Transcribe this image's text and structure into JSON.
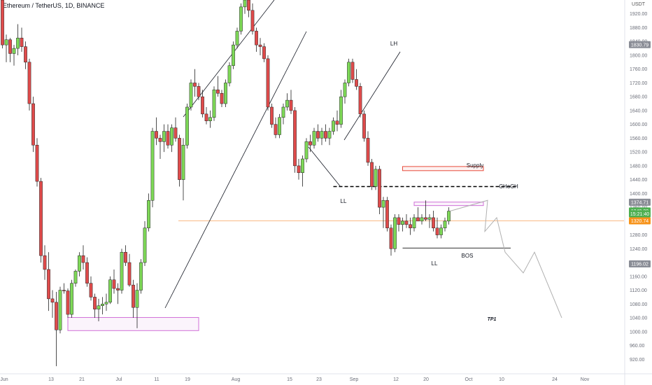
{
  "header": {
    "symbol_title": "Ethereum / TetherUS, 1D, BINANCE",
    "currency": "USDT"
  },
  "chart_data": {
    "type": "candlestick",
    "title": "Ethereum / TetherUS, 1D, BINANCE",
    "y_axis": {
      "min": 880,
      "max": 1960,
      "ticks": [
        920,
        960,
        1000,
        1040,
        1080,
        1120,
        1160,
        1200,
        1240,
        1280,
        1320,
        1360,
        1400,
        1440,
        1480,
        1520,
        1560,
        1600,
        1640,
        1680,
        1720,
        1760,
        1800,
        1840,
        1880,
        1920
      ],
      "side": "right"
    },
    "x_axis": {
      "labels": [
        "Jun",
        "13",
        "21",
        "Jul",
        "11",
        "19",
        "Aug",
        "15",
        "23",
        "Sep",
        "12",
        "20",
        "Oct",
        "10",
        "24",
        "Nov"
      ]
    },
    "grid": false,
    "price_badges": [
      {
        "value": "1830.79",
        "price": 1830.79,
        "style": "gray"
      },
      {
        "value": "1374.71",
        "price": 1374.71,
        "style": "gray"
      },
      {
        "value": "1349.29",
        "price": 1349.29,
        "style": "green"
      },
      {
        "value": "15:21:40",
        "price": 1341,
        "style": "green"
      },
      {
        "value": "1320.74",
        "price": 1320.74,
        "style": "orange"
      },
      {
        "value": "1196.02",
        "price": 1196.02,
        "style": "gray"
      }
    ],
    "candles": [
      {
        "o": 1960,
        "h": 1970,
        "l": 1820,
        "c": 1830
      },
      {
        "o": 1830,
        "h": 1860,
        "l": 1780,
        "c": 1845
      },
      {
        "o": 1845,
        "h": 1850,
        "l": 1780,
        "c": 1805
      },
      {
        "o": 1805,
        "h": 1830,
        "l": 1770,
        "c": 1820
      },
      {
        "o": 1820,
        "h": 1890,
        "l": 1800,
        "c": 1850
      },
      {
        "o": 1850,
        "h": 1880,
        "l": 1810,
        "c": 1825
      },
      {
        "o": 1825,
        "h": 1840,
        "l": 1760,
        "c": 1780
      },
      {
        "o": 1780,
        "h": 1790,
        "l": 1640,
        "c": 1660
      },
      {
        "o": 1660,
        "h": 1680,
        "l": 1520,
        "c": 1540
      },
      {
        "o": 1540,
        "h": 1560,
        "l": 1420,
        "c": 1435
      },
      {
        "o": 1435,
        "h": 1445,
        "l": 1200,
        "c": 1220
      },
      {
        "o": 1220,
        "h": 1250,
        "l": 1150,
        "c": 1180
      },
      {
        "o": 1180,
        "h": 1230,
        "l": 1060,
        "c": 1095
      },
      {
        "o": 1095,
        "h": 1120,
        "l": 1040,
        "c": 1085
      },
      {
        "o": 1085,
        "h": 1115,
        "l": 900,
        "c": 1005
      },
      {
        "o": 1005,
        "h": 1130,
        "l": 995,
        "c": 1120
      },
      {
        "o": 1120,
        "h": 1140,
        "l": 1110,
        "c": 1118
      },
      {
        "o": 1118,
        "h": 1125,
        "l": 1040,
        "c": 1050
      },
      {
        "o": 1050,
        "h": 1150,
        "l": 1040,
        "c": 1140
      },
      {
        "o": 1140,
        "h": 1180,
        "l": 1130,
        "c": 1175
      },
      {
        "o": 1175,
        "h": 1230,
        "l": 1160,
        "c": 1220
      },
      {
        "o": 1220,
        "h": 1250,
        "l": 1180,
        "c": 1200
      },
      {
        "o": 1200,
        "h": 1215,
        "l": 1130,
        "c": 1140
      },
      {
        "o": 1140,
        "h": 1160,
        "l": 1090,
        "c": 1100
      },
      {
        "o": 1100,
        "h": 1110,
        "l": 1040,
        "c": 1065
      },
      {
        "o": 1065,
        "h": 1095,
        "l": 1030,
        "c": 1075
      },
      {
        "o": 1075,
        "h": 1100,
        "l": 1050,
        "c": 1080
      },
      {
        "o": 1080,
        "h": 1110,
        "l": 1060,
        "c": 1085
      },
      {
        "o": 1085,
        "h": 1160,
        "l": 1080,
        "c": 1150
      },
      {
        "o": 1150,
        "h": 1180,
        "l": 1110,
        "c": 1125
      },
      {
        "o": 1125,
        "h": 1140,
        "l": 1080,
        "c": 1120
      },
      {
        "o": 1120,
        "h": 1240,
        "l": 1110,
        "c": 1230
      },
      {
        "o": 1230,
        "h": 1250,
        "l": 1190,
        "c": 1200
      },
      {
        "o": 1200,
        "h": 1225,
        "l": 1130,
        "c": 1135
      },
      {
        "o": 1135,
        "h": 1150,
        "l": 1040,
        "c": 1070
      },
      {
        "o": 1070,
        "h": 1140,
        "l": 1010,
        "c": 1120
      },
      {
        "o": 1120,
        "h": 1210,
        "l": 1110,
        "c": 1200
      },
      {
        "o": 1200,
        "h": 1320,
        "l": 1190,
        "c": 1300
      },
      {
        "o": 1300,
        "h": 1400,
        "l": 1290,
        "c": 1380
      },
      {
        "o": 1380,
        "h": 1590,
        "l": 1360,
        "c": 1580
      },
      {
        "o": 1580,
        "h": 1620,
        "l": 1540,
        "c": 1560
      },
      {
        "o": 1560,
        "h": 1570,
        "l": 1500,
        "c": 1550
      },
      {
        "o": 1550,
        "h": 1600,
        "l": 1520,
        "c": 1580
      },
      {
        "o": 1580,
        "h": 1600,
        "l": 1530,
        "c": 1540
      },
      {
        "o": 1540,
        "h": 1600,
        "l": 1520,
        "c": 1590
      },
      {
        "o": 1590,
        "h": 1620,
        "l": 1550,
        "c": 1560
      },
      {
        "o": 1560,
        "h": 1570,
        "l": 1420,
        "c": 1440
      },
      {
        "o": 1440,
        "h": 1560,
        "l": 1380,
        "c": 1540
      },
      {
        "o": 1540,
        "h": 1660,
        "l": 1530,
        "c": 1650
      },
      {
        "o": 1650,
        "h": 1730,
        "l": 1640,
        "c": 1720
      },
      {
        "o": 1720,
        "h": 1760,
        "l": 1680,
        "c": 1710
      },
      {
        "o": 1710,
        "h": 1720,
        "l": 1670,
        "c": 1680
      },
      {
        "o": 1680,
        "h": 1700,
        "l": 1620,
        "c": 1630
      },
      {
        "o": 1630,
        "h": 1650,
        "l": 1600,
        "c": 1610
      },
      {
        "o": 1610,
        "h": 1640,
        "l": 1590,
        "c": 1620
      },
      {
        "o": 1620,
        "h": 1710,
        "l": 1610,
        "c": 1700
      },
      {
        "o": 1700,
        "h": 1740,
        "l": 1680,
        "c": 1690
      },
      {
        "o": 1690,
        "h": 1700,
        "l": 1650,
        "c": 1660
      },
      {
        "o": 1660,
        "h": 1730,
        "l": 1650,
        "c": 1720
      },
      {
        "o": 1720,
        "h": 1780,
        "l": 1710,
        "c": 1770
      },
      {
        "o": 1770,
        "h": 1840,
        "l": 1760,
        "c": 1830
      },
      {
        "o": 1830,
        "h": 1880,
        "l": 1820,
        "c": 1870
      },
      {
        "o": 1870,
        "h": 1950,
        "l": 1860,
        "c": 1940
      },
      {
        "o": 1940,
        "h": 1980,
        "l": 1920,
        "c": 1960
      },
      {
        "o": 1960,
        "h": 1975,
        "l": 1910,
        "c": 1930
      },
      {
        "o": 1930,
        "h": 1950,
        "l": 1860,
        "c": 1870
      },
      {
        "o": 1870,
        "h": 1880,
        "l": 1810,
        "c": 1830
      },
      {
        "o": 1830,
        "h": 1850,
        "l": 1800,
        "c": 1825
      },
      {
        "o": 1825,
        "h": 1835,
        "l": 1780,
        "c": 1790
      },
      {
        "o": 1790,
        "h": 1800,
        "l": 1640,
        "c": 1650
      },
      {
        "o": 1650,
        "h": 1660,
        "l": 1590,
        "c": 1600
      },
      {
        "o": 1600,
        "h": 1620,
        "l": 1560,
        "c": 1570
      },
      {
        "o": 1570,
        "h": 1630,
        "l": 1560,
        "c": 1620
      },
      {
        "o": 1620,
        "h": 1660,
        "l": 1600,
        "c": 1650
      },
      {
        "o": 1650,
        "h": 1690,
        "l": 1640,
        "c": 1670
      },
      {
        "o": 1670,
        "h": 1700,
        "l": 1630,
        "c": 1640
      },
      {
        "o": 1640,
        "h": 1650,
        "l": 1460,
        "c": 1480
      },
      {
        "o": 1480,
        "h": 1500,
        "l": 1440,
        "c": 1460
      },
      {
        "o": 1460,
        "h": 1510,
        "l": 1420,
        "c": 1500
      },
      {
        "o": 1500,
        "h": 1560,
        "l": 1490,
        "c": 1550
      },
      {
        "o": 1550,
        "h": 1570,
        "l": 1520,
        "c": 1540
      },
      {
        "o": 1540,
        "h": 1590,
        "l": 1530,
        "c": 1580
      },
      {
        "o": 1580,
        "h": 1600,
        "l": 1550,
        "c": 1560
      },
      {
        "o": 1560,
        "h": 1590,
        "l": 1540,
        "c": 1580
      },
      {
        "o": 1580,
        "h": 1600,
        "l": 1550,
        "c": 1560
      },
      {
        "o": 1560,
        "h": 1590,
        "l": 1540,
        "c": 1580
      },
      {
        "o": 1580,
        "h": 1620,
        "l": 1570,
        "c": 1610
      },
      {
        "o": 1610,
        "h": 1640,
        "l": 1580,
        "c": 1600
      },
      {
        "o": 1600,
        "h": 1700,
        "l": 1590,
        "c": 1680
      },
      {
        "o": 1680,
        "h": 1730,
        "l": 1660,
        "c": 1720
      },
      {
        "o": 1720,
        "h": 1790,
        "l": 1710,
        "c": 1780
      },
      {
        "o": 1780,
        "h": 1790,
        "l": 1720,
        "c": 1730
      },
      {
        "o": 1730,
        "h": 1760,
        "l": 1700,
        "c": 1710
      },
      {
        "o": 1710,
        "h": 1720,
        "l": 1620,
        "c": 1630
      },
      {
        "o": 1630,
        "h": 1640,
        "l": 1550,
        "c": 1560
      },
      {
        "o": 1560,
        "h": 1580,
        "l": 1480,
        "c": 1490
      },
      {
        "o": 1490,
        "h": 1500,
        "l": 1410,
        "c": 1420
      },
      {
        "o": 1420,
        "h": 1480,
        "l": 1410,
        "c": 1470
      },
      {
        "o": 1470,
        "h": 1480,
        "l": 1340,
        "c": 1360
      },
      {
        "o": 1360,
        "h": 1390,
        "l": 1300,
        "c": 1380
      },
      {
        "o": 1380,
        "h": 1390,
        "l": 1290,
        "c": 1300
      },
      {
        "o": 1300,
        "h": 1310,
        "l": 1220,
        "c": 1240
      },
      {
        "o": 1240,
        "h": 1340,
        "l": 1230,
        "c": 1330
      },
      {
        "o": 1330,
        "h": 1340,
        "l": 1290,
        "c": 1310
      },
      {
        "o": 1310,
        "h": 1330,
        "l": 1290,
        "c": 1320
      },
      {
        "o": 1320,
        "h": 1340,
        "l": 1300,
        "c": 1310
      },
      {
        "o": 1310,
        "h": 1330,
        "l": 1280,
        "c": 1300
      },
      {
        "o": 1300,
        "h": 1340,
        "l": 1290,
        "c": 1330
      },
      {
        "o": 1330,
        "h": 1360,
        "l": 1320,
        "c": 1320
      },
      {
        "o": 1320,
        "h": 1340,
        "l": 1310,
        "c": 1330
      },
      {
        "o": 1330,
        "h": 1380,
        "l": 1320,
        "c": 1325
      },
      {
        "o": 1325,
        "h": 1340,
        "l": 1300,
        "c": 1330
      },
      {
        "o": 1330,
        "h": 1350,
        "l": 1290,
        "c": 1300
      },
      {
        "o": 1300,
        "h": 1330,
        "l": 1270,
        "c": 1280
      },
      {
        "o": 1280,
        "h": 1310,
        "l": 1270,
        "c": 1300
      },
      {
        "o": 1300,
        "h": 1330,
        "l": 1290,
        "c": 1320
      },
      {
        "o": 1320,
        "h": 1360,
        "l": 1310,
        "c": 1349
      }
    ],
    "annotations": {
      "labels": [
        {
          "text": "LH",
          "x_index": 94,
          "price": 1850
        },
        {
          "text": "LL",
          "x_index": 80,
          "price": 1400
        },
        {
          "text": "LL",
          "x_index": 104,
          "price": 1190
        },
        {
          "text": "Supply",
          "x_index": 113,
          "price": 1490
        },
        {
          "text": "CHoCH",
          "x_index": 122,
          "price": 1427
        },
        {
          "text": "BOS",
          "x_index": 112,
          "price": 1230
        },
        {
          "text": "TP1",
          "x_index": 118,
          "price": 1050
        }
      ],
      "zones": [
        {
          "name": "supply",
          "price_top": 1478,
          "price_bottom": 1466,
          "color": "#e74c3c"
        },
        {
          "name": "upper-range",
          "price_top": 1375,
          "price_bottom": 1365,
          "color": "#d070d8"
        },
        {
          "name": "lower-demand",
          "price_top": 1041,
          "price_bottom": 1003,
          "color": "#d070d8"
        }
      ],
      "horizontal_levels": [
        {
          "name": "current-price",
          "price": 1320.74,
          "color": "#f7a35c",
          "style": "solid"
        },
        {
          "name": "choch-level",
          "price": 1420,
          "color": "#000000",
          "style": "dashed"
        },
        {
          "name": "bos-level",
          "price": 1242,
          "color": "#333333",
          "style": "solid"
        }
      ],
      "projection": [
        1380,
        1290,
        1330,
        1230,
        1170,
        1230,
        1040
      ]
    }
  }
}
